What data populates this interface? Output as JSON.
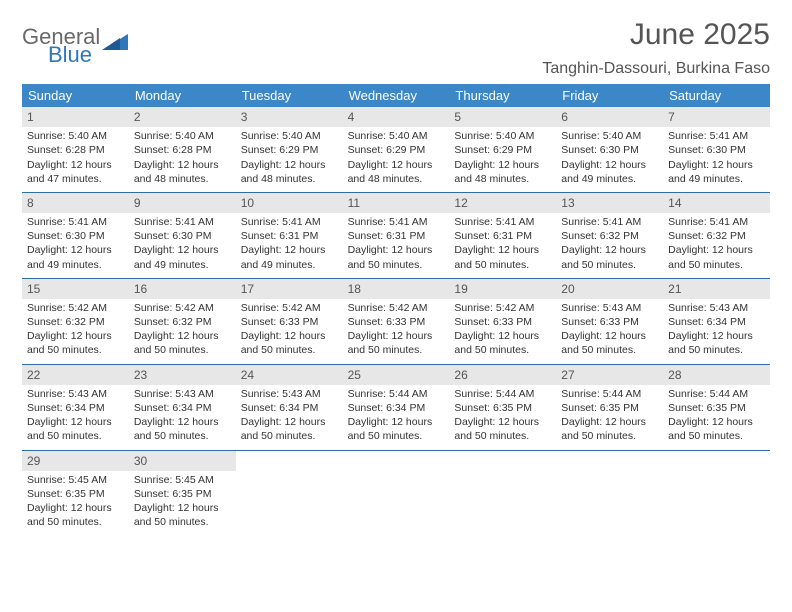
{
  "logo": {
    "word1": "General",
    "word2": "Blue"
  },
  "title": "June 2025",
  "subtitle": "Tanghin-Dassouri, Burkina Faso",
  "colors": {
    "header_blue": "#3b87c8",
    "rule_blue": "#2f6da8",
    "num_bg": "#e7e7e7",
    "logo_gray": "#6a6a6a",
    "logo_blue": "#2f77bb",
    "text": "#333333",
    "title_color": "#555555",
    "background": "#ffffff"
  },
  "font_sizes": {
    "title": 30,
    "subtitle": 16,
    "dayhead": 13,
    "daynum": 12,
    "body": 10.5
  },
  "days_of_week": [
    "Sunday",
    "Monday",
    "Tuesday",
    "Wednesday",
    "Thursday",
    "Friday",
    "Saturday"
  ],
  "first_weekday_index": 0,
  "num_days": 30,
  "cells": [
    {
      "n": 1,
      "sr": "Sunrise: 5:40 AM",
      "ss": "Sunset: 6:28 PM",
      "d1": "Daylight: 12 hours",
      "d2": "and 47 minutes."
    },
    {
      "n": 2,
      "sr": "Sunrise: 5:40 AM",
      "ss": "Sunset: 6:28 PM",
      "d1": "Daylight: 12 hours",
      "d2": "and 48 minutes."
    },
    {
      "n": 3,
      "sr": "Sunrise: 5:40 AM",
      "ss": "Sunset: 6:29 PM",
      "d1": "Daylight: 12 hours",
      "d2": "and 48 minutes."
    },
    {
      "n": 4,
      "sr": "Sunrise: 5:40 AM",
      "ss": "Sunset: 6:29 PM",
      "d1": "Daylight: 12 hours",
      "d2": "and 48 minutes."
    },
    {
      "n": 5,
      "sr": "Sunrise: 5:40 AM",
      "ss": "Sunset: 6:29 PM",
      "d1": "Daylight: 12 hours",
      "d2": "and 48 minutes."
    },
    {
      "n": 6,
      "sr": "Sunrise: 5:40 AM",
      "ss": "Sunset: 6:30 PM",
      "d1": "Daylight: 12 hours",
      "d2": "and 49 minutes."
    },
    {
      "n": 7,
      "sr": "Sunrise: 5:41 AM",
      "ss": "Sunset: 6:30 PM",
      "d1": "Daylight: 12 hours",
      "d2": "and 49 minutes."
    },
    {
      "n": 8,
      "sr": "Sunrise: 5:41 AM",
      "ss": "Sunset: 6:30 PM",
      "d1": "Daylight: 12 hours",
      "d2": "and 49 minutes."
    },
    {
      "n": 9,
      "sr": "Sunrise: 5:41 AM",
      "ss": "Sunset: 6:30 PM",
      "d1": "Daylight: 12 hours",
      "d2": "and 49 minutes."
    },
    {
      "n": 10,
      "sr": "Sunrise: 5:41 AM",
      "ss": "Sunset: 6:31 PM",
      "d1": "Daylight: 12 hours",
      "d2": "and 49 minutes."
    },
    {
      "n": 11,
      "sr": "Sunrise: 5:41 AM",
      "ss": "Sunset: 6:31 PM",
      "d1": "Daylight: 12 hours",
      "d2": "and 50 minutes."
    },
    {
      "n": 12,
      "sr": "Sunrise: 5:41 AM",
      "ss": "Sunset: 6:31 PM",
      "d1": "Daylight: 12 hours",
      "d2": "and 50 minutes."
    },
    {
      "n": 13,
      "sr": "Sunrise: 5:41 AM",
      "ss": "Sunset: 6:32 PM",
      "d1": "Daylight: 12 hours",
      "d2": "and 50 minutes."
    },
    {
      "n": 14,
      "sr": "Sunrise: 5:41 AM",
      "ss": "Sunset: 6:32 PM",
      "d1": "Daylight: 12 hours",
      "d2": "and 50 minutes."
    },
    {
      "n": 15,
      "sr": "Sunrise: 5:42 AM",
      "ss": "Sunset: 6:32 PM",
      "d1": "Daylight: 12 hours",
      "d2": "and 50 minutes."
    },
    {
      "n": 16,
      "sr": "Sunrise: 5:42 AM",
      "ss": "Sunset: 6:32 PM",
      "d1": "Daylight: 12 hours",
      "d2": "and 50 minutes."
    },
    {
      "n": 17,
      "sr": "Sunrise: 5:42 AM",
      "ss": "Sunset: 6:33 PM",
      "d1": "Daylight: 12 hours",
      "d2": "and 50 minutes."
    },
    {
      "n": 18,
      "sr": "Sunrise: 5:42 AM",
      "ss": "Sunset: 6:33 PM",
      "d1": "Daylight: 12 hours",
      "d2": "and 50 minutes."
    },
    {
      "n": 19,
      "sr": "Sunrise: 5:42 AM",
      "ss": "Sunset: 6:33 PM",
      "d1": "Daylight: 12 hours",
      "d2": "and 50 minutes."
    },
    {
      "n": 20,
      "sr": "Sunrise: 5:43 AM",
      "ss": "Sunset: 6:33 PM",
      "d1": "Daylight: 12 hours",
      "d2": "and 50 minutes."
    },
    {
      "n": 21,
      "sr": "Sunrise: 5:43 AM",
      "ss": "Sunset: 6:34 PM",
      "d1": "Daylight: 12 hours",
      "d2": "and 50 minutes."
    },
    {
      "n": 22,
      "sr": "Sunrise: 5:43 AM",
      "ss": "Sunset: 6:34 PM",
      "d1": "Daylight: 12 hours",
      "d2": "and 50 minutes."
    },
    {
      "n": 23,
      "sr": "Sunrise: 5:43 AM",
      "ss": "Sunset: 6:34 PM",
      "d1": "Daylight: 12 hours",
      "d2": "and 50 minutes."
    },
    {
      "n": 24,
      "sr": "Sunrise: 5:43 AM",
      "ss": "Sunset: 6:34 PM",
      "d1": "Daylight: 12 hours",
      "d2": "and 50 minutes."
    },
    {
      "n": 25,
      "sr": "Sunrise: 5:44 AM",
      "ss": "Sunset: 6:34 PM",
      "d1": "Daylight: 12 hours",
      "d2": "and 50 minutes."
    },
    {
      "n": 26,
      "sr": "Sunrise: 5:44 AM",
      "ss": "Sunset: 6:35 PM",
      "d1": "Daylight: 12 hours",
      "d2": "and 50 minutes."
    },
    {
      "n": 27,
      "sr": "Sunrise: 5:44 AM",
      "ss": "Sunset: 6:35 PM",
      "d1": "Daylight: 12 hours",
      "d2": "and 50 minutes."
    },
    {
      "n": 28,
      "sr": "Sunrise: 5:44 AM",
      "ss": "Sunset: 6:35 PM",
      "d1": "Daylight: 12 hours",
      "d2": "and 50 minutes."
    },
    {
      "n": 29,
      "sr": "Sunrise: 5:45 AM",
      "ss": "Sunset: 6:35 PM",
      "d1": "Daylight: 12 hours",
      "d2": "and 50 minutes."
    },
    {
      "n": 30,
      "sr": "Sunrise: 5:45 AM",
      "ss": "Sunset: 6:35 PM",
      "d1": "Daylight: 12 hours",
      "d2": "and 50 minutes."
    }
  ]
}
